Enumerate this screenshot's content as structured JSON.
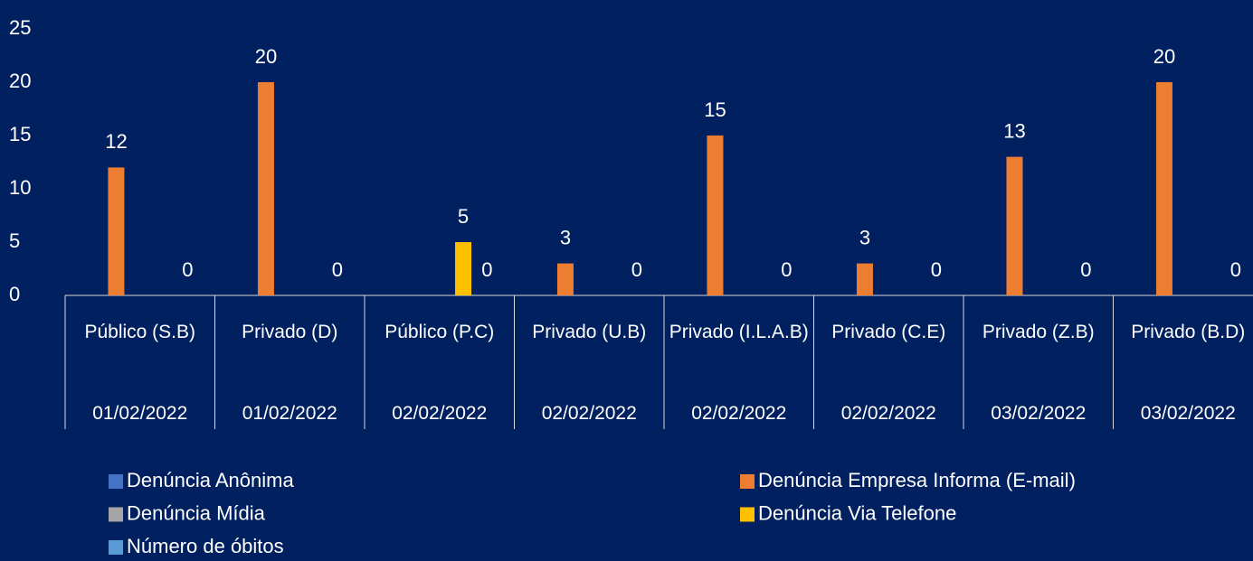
{
  "chart_data": {
    "type": "bar",
    "categories": [
      "Público (S.B)",
      "Privado (D)",
      "Público (P.C)",
      "Privado (U.B)",
      "Privado (I.L.A.B)",
      "Privado (C.E)",
      "Privado (Z.B)",
      "Privado (B.D)"
    ],
    "category_dates": [
      "01/02/2022",
      "01/02/2022",
      "02/02/2022",
      "02/02/2022",
      "02/02/2022",
      "02/02/2022",
      "03/02/2022",
      "03/02/2022"
    ],
    "series": [
      {
        "name": "Denúncia Anônima",
        "color": "#4472c4",
        "values": [
          null,
          null,
          null,
          null,
          null,
          null,
          null,
          null
        ]
      },
      {
        "name": "Denúncia Empresa Informa (E-mail)",
        "color": "#ed7d31",
        "values": [
          12,
          20,
          null,
          3,
          15,
          3,
          13,
          20
        ]
      },
      {
        "name": "Denúncia Mídia",
        "color": "#a5a5a5",
        "values": [
          null,
          null,
          null,
          null,
          null,
          null,
          null,
          null
        ]
      },
      {
        "name": "Denúncia Via Telefone",
        "color": "#ffc000",
        "values": [
          null,
          null,
          5,
          null,
          null,
          null,
          null,
          null
        ]
      },
      {
        "name": "Número de óbitos",
        "color": "#5b9bd5",
        "values": [
          0,
          0,
          0,
          0,
          0,
          0,
          0,
          0
        ]
      }
    ],
    "ylim": [
      0,
      25
    ],
    "yticks": [
      0,
      5,
      10,
      15,
      20,
      25
    ],
    "grid": false
  }
}
